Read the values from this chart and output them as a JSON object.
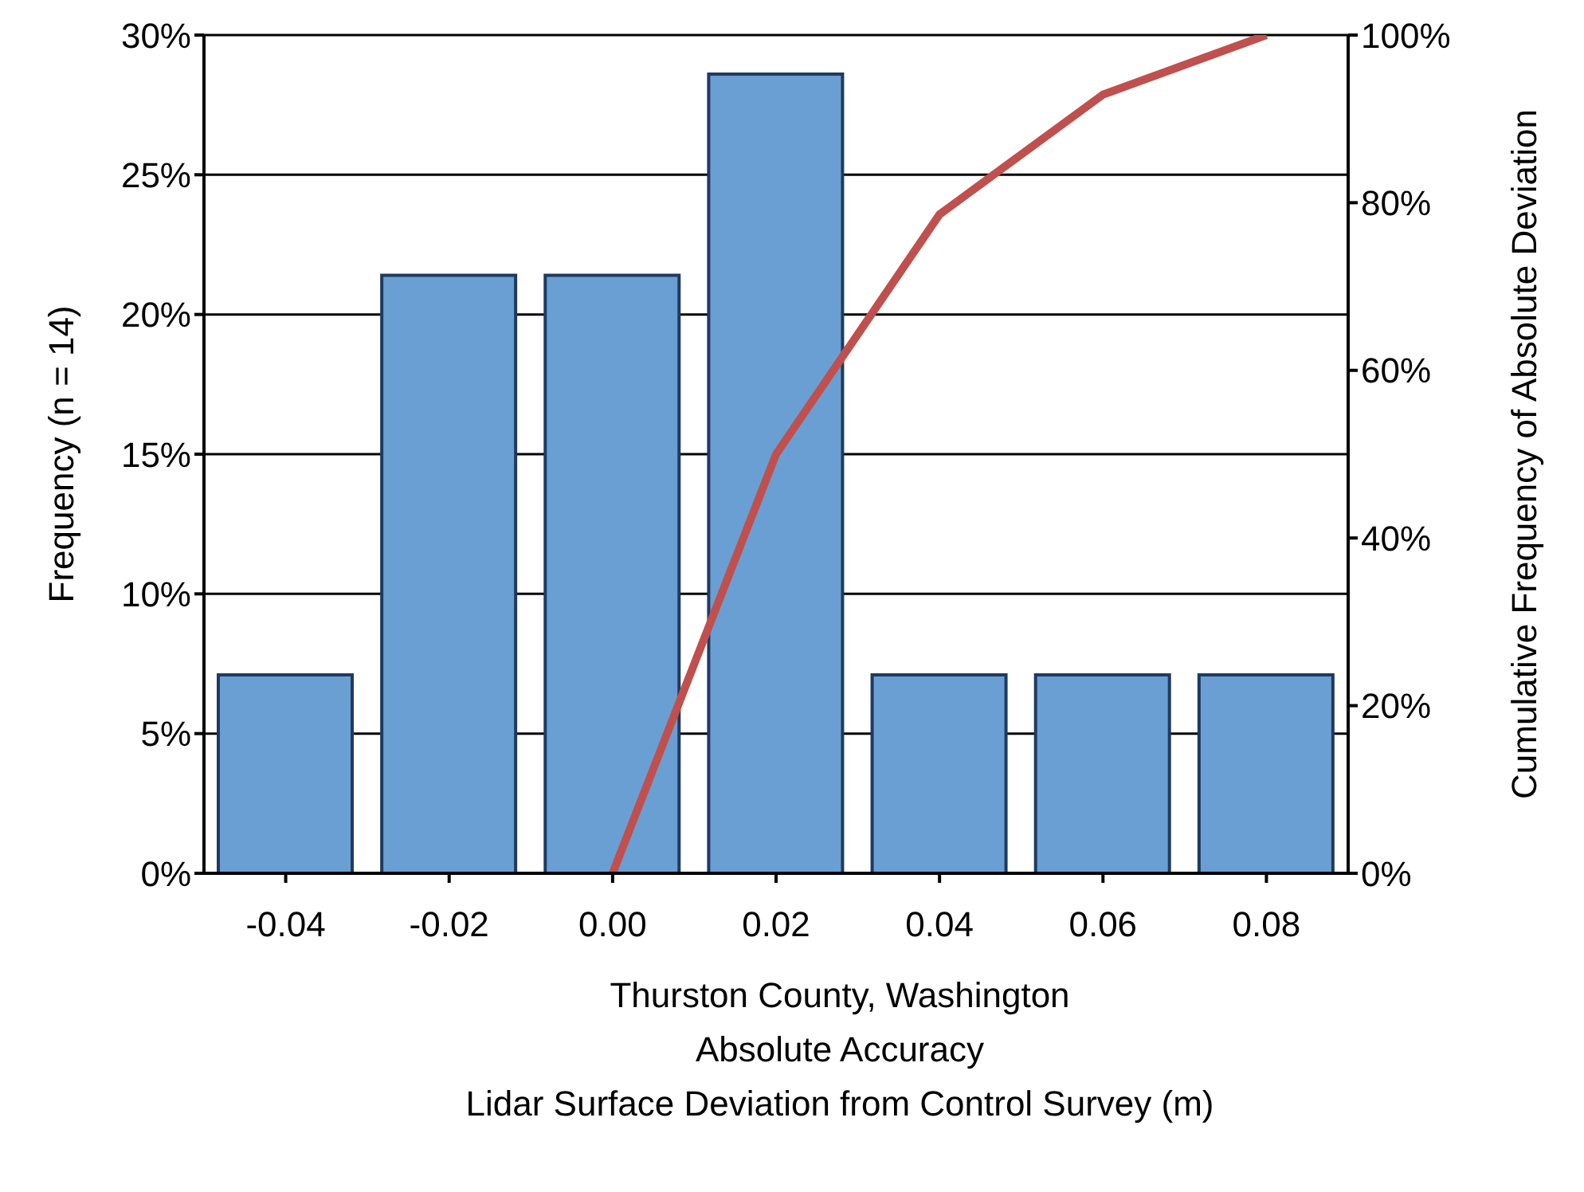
{
  "chart_data": {
    "type": "bar",
    "xlabel": "Thurston County, Washington\nAbsolute Accuracy\nLidar Surface Deviation from Control Survey (m)",
    "ylabel": "Frequency (n = 14)",
    "y2label": "Cumulative Frequency of Absolute Deviation",
    "categories": [
      "-0.04",
      "-0.02",
      "0.00",
      "0.02",
      "0.04",
      "0.06",
      "0.08"
    ],
    "series": [
      {
        "color": "#6a9fd4",
        "values": [
          7.1,
          21.4,
          21.4,
          28.6,
          7.1,
          7.1,
          7.1
        ]
      },
      {
        "type": "line",
        "axis": "y2",
        "color": "#c0504d",
        "values": [
          null,
          null,
          0,
          50,
          78.6,
          92.9,
          100
        ]
      }
    ],
    "ylim": [
      0,
      30
    ],
    "yticks": [
      {
        "value": 0,
        "label": "0%"
      },
      {
        "value": 5,
        "label": "5%"
      },
      {
        "value": 10,
        "label": "10%"
      },
      {
        "value": 15,
        "label": "15%"
      },
      {
        "value": 20,
        "label": "20%"
      },
      {
        "value": 25,
        "label": "25%"
      },
      {
        "value": 30,
        "label": "30%"
      }
    ],
    "y2lim": [
      0,
      100
    ],
    "y2ticks": [
      {
        "value": 0,
        "label": "0%"
      },
      {
        "value": 20,
        "label": "20%"
      },
      {
        "value": 40,
        "label": "40%"
      },
      {
        "value": 60,
        "label": "60%"
      },
      {
        "value": 80,
        "label": "80%"
      },
      {
        "value": 100,
        "label": "100%"
      }
    ],
    "grid": "y",
    "legend": false,
    "marker": "none",
    "line_style": "solid"
  }
}
